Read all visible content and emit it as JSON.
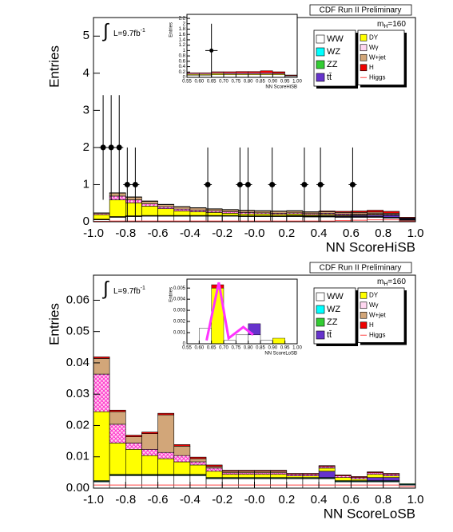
{
  "chart_data": [
    {
      "type": "stacked_histogram",
      "title": "CDF Run II Preliminary",
      "mass": {
        "symbol": "m",
        "subscript": "H",
        "text": "=160"
      },
      "lumi": {
        "integral": "∫",
        "text": "L=9.7fb",
        "superscript": "-1"
      },
      "xlabel": "NN ScoreHiSB",
      "ylabel": "Entries",
      "xlim": [
        -1,
        1
      ],
      "ylim": [
        0,
        5.5
      ],
      "xticks": [
        {
          "value": -1,
          "label": "-1.0"
        },
        -0.8,
        -0.6,
        -0.4,
        -0.2,
        {
          "value": 0,
          "label": "-0.0"
        },
        0.2,
        0.4,
        0.6,
        0.8,
        {
          "value": 1,
          "label": "1.0"
        }
      ],
      "yticks": [
        0,
        1,
        2,
        3,
        4,
        5
      ],
      "legend": "upper right",
      "bins": [
        -1,
        -0.9,
        -0.8,
        -0.7,
        -0.6,
        -0.5,
        -0.4,
        -0.3,
        -0.2,
        -0.1,
        0,
        0.1,
        0.2,
        0.3,
        0.4,
        0.5,
        0.6,
        0.7,
        0.8,
        0.9,
        1
      ],
      "series": [
        {
          "name": "WW",
          "color": "#ffffff",
          "values": [
            0.05,
            0.12,
            0.14,
            0.15,
            0.15,
            0.15,
            0.15,
            0.15,
            0.15,
            0.14,
            0.14,
            0.14,
            0.14,
            0.13,
            0.13,
            0.12,
            0.12,
            0.12,
            0.1,
            0.04
          ]
        },
        {
          "name": "WZ",
          "color": "#00ffff",
          "values": [
            0.01,
            0.01,
            0.01,
            0.01,
            0.01,
            0.01,
            0.01,
            0.01,
            0.01,
            0.01,
            0.01,
            0.01,
            0.01,
            0.01,
            0.01,
            0.01,
            0.01,
            0.01,
            0.01,
            0.01
          ]
        },
        {
          "name": "ZZ",
          "color": "#33cc33",
          "values": [
            0.01,
            0.01,
            0.01,
            0.01,
            0.01,
            0.01,
            0.01,
            0.01,
            0.01,
            0.01,
            0.01,
            0.01,
            0.01,
            0.01,
            0.01,
            0.01,
            0.01,
            0.01,
            0.01,
            0.01
          ]
        },
        {
          "name": "tt̄",
          "color": "#6633cc",
          "values": [
            0,
            0,
            0,
            0,
            0,
            0,
            0,
            0,
            0,
            0,
            0,
            0,
            0.01,
            0.01,
            0.02,
            0.02,
            0.03,
            0.04,
            0.05,
            0.02
          ]
        },
        {
          "name": "DY",
          "color": "#ffff00",
          "values": [
            0.12,
            0.45,
            0.35,
            0.25,
            0.18,
            0.12,
            0.1,
            0.08,
            0.06,
            0.05,
            0.05,
            0.04,
            0.04,
            0.03,
            0.03,
            0.02,
            0.02,
            0.02,
            0.01,
            0
          ]
        },
        {
          "name": "Wγ",
          "color": "#ff33cc",
          "pattern": "crosshatch",
          "values": [
            0.03,
            0.1,
            0.08,
            0.06,
            0.05,
            0.05,
            0.04,
            0.04,
            0.04,
            0.04,
            0.03,
            0.03,
            0.03,
            0.03,
            0.03,
            0.03,
            0.02,
            0.02,
            0.02,
            0.01
          ]
        },
        {
          "name": "W+jet",
          "color": "#d2a679",
          "values": [
            0.02,
            0.08,
            0.07,
            0.07,
            0.06,
            0.06,
            0.06,
            0.05,
            0.05,
            0.05,
            0.05,
            0.05,
            0.05,
            0.04,
            0.04,
            0.04,
            0.04,
            0.04,
            0.03,
            0.01
          ]
        },
        {
          "name": "H",
          "color": "#ee0000",
          "values": [
            0,
            0.01,
            0.01,
            0.01,
            0.01,
            0.01,
            0.01,
            0.01,
            0.01,
            0.01,
            0.01,
            0.01,
            0.01,
            0.01,
            0.02,
            0.03,
            0.04,
            0.05,
            0.05,
            0.02
          ]
        },
        {
          "name": "Higgs",
          "color": "#ff4444",
          "style": "line",
          "values": [
            0.01,
            0.02,
            0.02,
            0.02,
            0.02,
            0.02,
            0.02,
            0.02,
            0.02,
            0.02,
            0.02,
            0.02,
            0.02,
            0.02,
            0.02,
            0.03,
            0.04,
            0.05,
            0.05,
            0.02
          ]
        }
      ],
      "data_points": {
        "color": "#000000",
        "x": [
          -0.94,
          -0.89,
          -0.84,
          -0.79,
          -0.74,
          -0.29,
          -0.09,
          -0.04,
          0.11,
          0.31,
          0.41,
          0.61
        ],
        "values": [
          2,
          2,
          2,
          1,
          1,
          1,
          1,
          1,
          1,
          1,
          1,
          1
        ],
        "errors": [
          1.41,
          1.41,
          1.41,
          1,
          1,
          1,
          1,
          1,
          1,
          1,
          1,
          1
        ],
        "x_errors": [
          0.025,
          0.025,
          0.025,
          0.025,
          0.025,
          0.025,
          0.025,
          0.025,
          0.025,
          0.025,
          0.025,
          0.025
        ]
      },
      "inset": {
        "xlabel": "NN ScoreHiSB",
        "ylabel": "Entries",
        "xlim": [
          0.55,
          1
        ],
        "ylim": [
          0,
          2.35
        ],
        "xticks": [
          0.55,
          {
            "value": 0.6,
            "label": "0.60"
          },
          0.65,
          {
            "value": 0.7,
            "label": "0.70"
          },
          0.75,
          {
            "value": 0.8,
            "label": "0.80"
          },
          0.85,
          {
            "value": 0.9,
            "label": "0.90"
          },
          0.95,
          {
            "value": 1,
            "label": "1.00"
          }
        ],
        "yticks": [
          0,
          0.2,
          0.4,
          0.6,
          0.8,
          1,
          1.2,
          1.4,
          1.6,
          1.8,
          2,
          2.2
        ],
        "bins": [
          0.55,
          0.6,
          0.65,
          0.7,
          0.75,
          0.8,
          0.85,
          0.9,
          0.95,
          1
        ],
        "layers": [
          {
            "color": "#ffffff",
            "values": [
              0.08,
              0.08,
              0.1,
              0.1,
              0.1,
              0.1,
              0.1,
              0.1,
              0.05
            ]
          },
          {
            "color": "#ffff00",
            "values": [
              0.03,
              0.03,
              0.04,
              0.03,
              0.03,
              0.03,
              0.03,
              0.03,
              0.01
            ]
          },
          {
            "color": "#ff99dd",
            "values": [
              0.04,
              0.04,
              0.04,
              0.04,
              0.04,
              0.04,
              0.04,
              0.03,
              0.01
            ]
          },
          {
            "color": "#ee0000",
            "values": [
              0.02,
              0.02,
              0.03,
              0.04,
              0.05,
              0.05,
              0.08,
              0.05,
              0.02
            ]
          }
        ],
        "data_points": {
          "color": "#000000",
          "x": [
            0.65
          ],
          "values": [
            1
          ],
          "errors": [
            1
          ],
          "x_errors": [
            0.025
          ]
        }
      }
    },
    {
      "type": "stacked_histogram",
      "title": "CDF Run II Preliminary",
      "mass": {
        "symbol": "m",
        "subscript": "H",
        "text": "=160"
      },
      "lumi": {
        "integral": "∫",
        "text": "L=9.7fb",
        "superscript": "-1"
      },
      "xlabel": "NN ScoreLoSB",
      "ylabel": "Entries",
      "xlim": [
        -1,
        1
      ],
      "ylim": [
        0,
        0.068
      ],
      "xticks": [
        {
          "value": -1,
          "label": "-1.0"
        },
        -0.8,
        -0.6,
        -0.4,
        -0.2,
        {
          "value": 0,
          "label": "-0.0"
        },
        0.2,
        0.4,
        0.6,
        0.8,
        {
          "value": 1,
          "label": "1.0"
        }
      ],
      "yticks": [
        {
          "value": 0,
          "label": "0.00"
        },
        0.01,
        0.02,
        0.03,
        0.04,
        0.05,
        0.06
      ],
      "legend": "upper right",
      "bins": [
        -1,
        -0.9,
        -0.8,
        -0.7,
        -0.6,
        -0.5,
        -0.4,
        -0.3,
        -0.2,
        -0.1,
        0,
        0.1,
        0.2,
        0.3,
        0.4,
        0.5,
        0.6,
        0.7,
        0.8,
        0.9,
        1
      ],
      "series": [
        {
          "name": "WW",
          "color": "#ffffff",
          "values": [
            0.002,
            0.004,
            0.004,
            0.004,
            0.004,
            0.004,
            0.004,
            0.003,
            0.003,
            0.003,
            0.003,
            0.003,
            0.003,
            0.003,
            0.003,
            0.002,
            0.002,
            0.002,
            0.002,
            0.001
          ]
        },
        {
          "name": "WZ",
          "color": "#00ffff",
          "values": [
            0.0002,
            0.0002,
            0.0002,
            0.0002,
            0.0002,
            0.0002,
            0.0002,
            0.0002,
            0.0002,
            0.0002,
            0.0002,
            0.0002,
            0.0002,
            0.0002,
            0.0002,
            0.0002,
            0.0002,
            0.0002,
            0.0002,
            0.0002
          ]
        },
        {
          "name": "ZZ",
          "color": "#33cc33",
          "values": [
            0.0002,
            0.0002,
            0.0002,
            0.0002,
            0.0002,
            0.0002,
            0.0002,
            0.0002,
            0.0002,
            0.0002,
            0.0002,
            0.0002,
            0.0002,
            0.0002,
            0.0002,
            0.0002,
            0.0002,
            0.0002,
            0.0002,
            0.0002
          ]
        },
        {
          "name": "tt̄",
          "color": "#6633cc",
          "values": [
            0,
            0,
            0,
            0,
            0,
            0,
            0,
            0,
            0,
            0,
            0,
            0,
            0,
            0,
            0.002,
            0,
            0,
            0.001,
            0.001,
            0
          ]
        },
        {
          "name": "DY",
          "color": "#ffff00",
          "values": [
            0.022,
            0.01,
            0.008,
            0.006,
            0.005,
            0.004,
            0.003,
            0.002,
            0.001,
            0.001,
            0.001,
            0.001,
            0.0005,
            0.0005,
            0.001,
            0.001,
            0.0005,
            0.001,
            0.0005,
            0
          ]
        },
        {
          "name": "Wγ",
          "color": "#ff33cc",
          "pattern": "crosshatch",
          "values": [
            0.012,
            0.006,
            0.002,
            0.002,
            0.002,
            0.002,
            0.001,
            0.001,
            0.0005,
            0.0005,
            0.0005,
            0.0005,
            0.0005,
            0.0005,
            0.0005,
            0.0005,
            0.0005,
            0.0005,
            0.0005,
            0
          ]
        },
        {
          "name": "W+jet",
          "color": "#d2a679",
          "values": [
            0.005,
            0.004,
            0.002,
            0.005,
            0.012,
            0.003,
            0.001,
            0.0005,
            0.0005,
            0.0005,
            0.0005,
            0.0005,
            0,
            0,
            0,
            0,
            0,
            0,
            0,
            0
          ]
        },
        {
          "name": "H",
          "color": "#ee0000",
          "values": [
            0.0005,
            0.0005,
            0.0005,
            0.0005,
            0.0005,
            0.0005,
            0.0005,
            0.0005,
            0.0003,
            0.0003,
            0.0003,
            0.0003,
            0.0003,
            0.0003,
            0.0003,
            0.0003,
            0.0003,
            0.0003,
            0.0003,
            0
          ]
        },
        {
          "name": "Higgs",
          "color": "#ff4444",
          "style": "line",
          "values": [
            0.001,
            0.001,
            0.001,
            0.001,
            0.001,
            0.001,
            0.001,
            0.001,
            0.001,
            0.001,
            0.001,
            0.001,
            0.001,
            0.001,
            0.001,
            0.001,
            0.001,
            0.001,
            0.001,
            0.0005
          ]
        }
      ],
      "inset": {
        "xlabel": "NN ScoreLoSB",
        "ylabel": "Entries",
        "xlim": [
          0.55,
          1
        ],
        "ylim": [
          0,
          0.0058
        ],
        "xticks": [
          0.55,
          {
            "value": 0.6,
            "label": "0.60"
          },
          0.65,
          {
            "value": 0.7,
            "label": "0.70"
          },
          0.75,
          {
            "value": 0.8,
            "label": "0.80"
          },
          0.85,
          {
            "value": 0.9,
            "label": "0.90"
          },
          0.95,
          {
            "value": 1,
            "label": "1.00"
          }
        ],
        "yticks": [
          0,
          0.001,
          0.002,
          0.003,
          0.004,
          0.005
        ],
        "bins": [
          0.55,
          0.6,
          0.65,
          0.7,
          0.75,
          0.8,
          0.85,
          0.9,
          0.95,
          1
        ],
        "layers": [
          {
            "color": "#ffffff",
            "values": [
              0,
              0.0014,
              0,
              0.0003,
              0.0008,
              0.0008,
              0.0003,
              0,
              0
            ]
          },
          {
            "color": "#ffff00",
            "values": [
              0,
              0,
              0.005,
              0,
              0,
              0,
              0,
              0.0005,
              0
            ]
          },
          {
            "color": "#6633cc",
            "values": [
              0,
              0,
              0,
              0,
              0,
              0.001,
              0,
              0,
              0
            ]
          },
          {
            "color": "#ee0000",
            "values": [
              0,
              0,
              0.0003,
              0,
              0,
              0,
              0,
              0,
              0
            ]
          }
        ],
        "line": {
          "color": "#ff33ff",
          "x": [
            0.63,
            0.68,
            0.72,
            0.78,
            0.82
          ],
          "values": [
            0.0003,
            0.0055,
            0.0005,
            0.0015,
            0.0008
          ]
        }
      }
    }
  ]
}
